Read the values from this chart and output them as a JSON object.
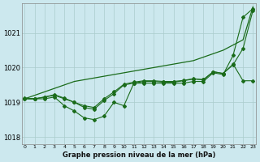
{
  "title": "Graphe pression niveau de la mer (hPa)",
  "bg_color": "#cce8ee",
  "grid_color": "#aacccc",
  "line_color": "#1a6b1a",
  "ylim": [
    1017.8,
    1021.85
  ],
  "yticks": [
    1018,
    1019,
    1020,
    1021
  ],
  "xlim": [
    -0.3,
    23.3
  ],
  "series": {
    "line_straight": [
      1019.1,
      1019.2,
      1019.3,
      1019.4,
      1019.5,
      1019.6,
      1019.65,
      1019.7,
      1019.75,
      1019.8,
      1019.85,
      1019.9,
      1019.95,
      1020.0,
      1020.05,
      1020.1,
      1020.15,
      1020.2,
      1020.3,
      1020.4,
      1020.5,
      1020.65,
      1020.8,
      1021.75
    ],
    "line_dip": [
      1019.1,
      1019.1,
      1019.1,
      1019.15,
      1018.9,
      1018.75,
      1018.55,
      1018.5,
      1018.6,
      1019.0,
      1018.9,
      1019.55,
      1019.55,
      1019.55,
      1019.55,
      1019.55,
      1019.55,
      1019.6,
      1019.6,
      1019.85,
      1019.8,
      1020.35,
      1021.45,
      1021.7
    ],
    "line_mid1": [
      1019.1,
      1019.1,
      1019.15,
      1019.2,
      1019.1,
      1019.0,
      1018.85,
      1018.8,
      1019.05,
      1019.25,
      1019.5,
      1019.55,
      1019.6,
      1019.6,
      1019.58,
      1019.58,
      1019.62,
      1019.67,
      1019.65,
      1019.88,
      1019.83,
      1020.08,
      1020.55,
      1021.65
    ],
    "line_mid2": [
      1019.12,
      1019.1,
      1019.15,
      1019.22,
      1019.12,
      1019.0,
      1018.9,
      1018.85,
      1019.1,
      1019.3,
      1019.52,
      1019.58,
      1019.62,
      1019.62,
      1019.6,
      1019.6,
      1019.63,
      1019.68,
      1019.65,
      1019.88,
      1019.83,
      1020.1,
      1019.62,
      1019.62
    ]
  }
}
